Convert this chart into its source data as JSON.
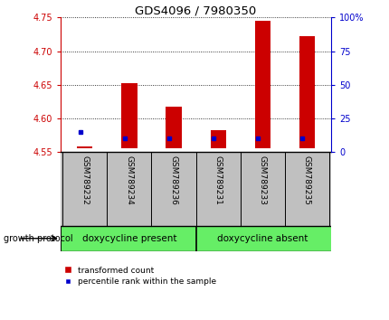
{
  "title": "GDS4096 / 7980350",
  "samples": [
    "GSM789232",
    "GSM789234",
    "GSM789236",
    "GSM789231",
    "GSM789233",
    "GSM789235"
  ],
  "bar_bottom": 4.555,
  "bar_tops": [
    4.558,
    4.652,
    4.618,
    4.582,
    4.745,
    4.723
  ],
  "blue_pct": [
    15,
    10,
    10,
    10,
    10,
    10
  ],
  "ylim": [
    4.55,
    4.75
  ],
  "yticks_left": [
    4.55,
    4.6,
    4.65,
    4.7,
    4.75
  ],
  "yticks_right": [
    0,
    25,
    50,
    75,
    100
  ],
  "ytick_right_labels": [
    "0",
    "25",
    "50",
    "75",
    "100%"
  ],
  "bar_color": "#cc0000",
  "blue_color": "#0000cc",
  "group1_label": "doxycycline present",
  "group2_label": "doxycycline absent",
  "group1_indices": [
    0,
    1,
    2
  ],
  "group2_indices": [
    3,
    4,
    5
  ],
  "group_color": "#66ee66",
  "protocol_label": "growth protocol",
  "legend_red": "transformed count",
  "legend_blue": "percentile rank within the sample",
  "bar_width": 0.35,
  "left_axis_color": "#cc0000",
  "right_axis_color": "#0000cc",
  "tick_area_bg": "#c0c0c0"
}
